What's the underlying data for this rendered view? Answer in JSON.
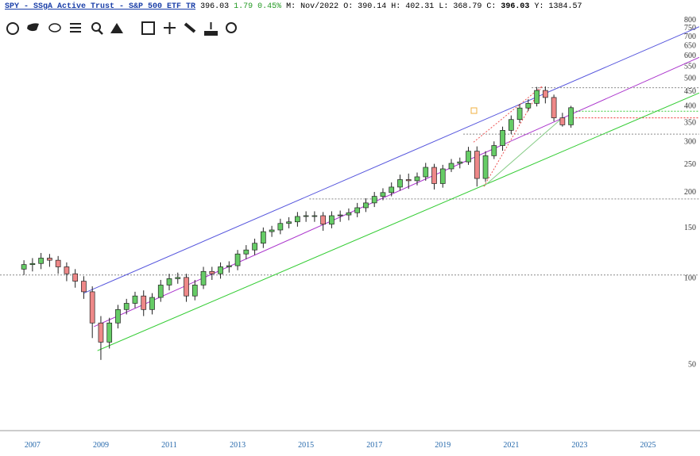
{
  "header": {
    "title": "SPY - SSgA Active Trust - S&P 500 ETF TR",
    "last": 396.03,
    "change": 1.79,
    "change_pct": "0.45%",
    "period": "M: Nov/2022",
    "fields": [
      {
        "label": "O:",
        "value": 390.14
      },
      {
        "label": "H:",
        "value": 402.31
      },
      {
        "label": "L:",
        "value": 368.79
      },
      {
        "label": "C:",
        "value": 396.03
      },
      {
        "label": "Y:",
        "value": 1384.57
      }
    ]
  },
  "chart_data": {
    "type": "candlestick",
    "log_scale": true,
    "up_color": "#66cc66",
    "down_color": "#ee8888",
    "x": [
      2006.75,
      2007,
      2007.25,
      2007.5,
      2007.75,
      2008,
      2008.25,
      2008.5,
      2008.75,
      2009,
      2009.25,
      2009.5,
      2009.75,
      2010,
      2010.25,
      2010.5,
      2010.75,
      2011,
      2011.25,
      2011.5,
      2011.75,
      2012,
      2012.25,
      2012.5,
      2012.75,
      2013,
      2013.25,
      2013.5,
      2013.75,
      2014,
      2014.25,
      2014.5,
      2014.75,
      2015,
      2015.25,
      2015.5,
      2015.75,
      2016,
      2016.25,
      2016.5,
      2016.75,
      2017,
      2017.25,
      2017.5,
      2017.75,
      2018,
      2018.25,
      2018.5,
      2018.75,
      2019,
      2019.25,
      2019.5,
      2019.75,
      2020,
      2020.25,
      2020.5,
      2020.75,
      2021,
      2021.25,
      2021.5,
      2021.75,
      2022,
      2022.25,
      2022.5,
      2022.75
    ],
    "open": [
      108,
      112,
      113,
      118,
      116,
      110,
      104,
      98,
      90,
      70,
      60,
      70,
      78,
      82,
      87,
      78,
      86,
      95,
      100,
      101,
      87,
      95,
      106,
      104,
      110,
      111,
      122,
      126,
      133,
      146,
      148,
      156,
      158,
      165,
      166,
      166,
      155,
      166,
      167,
      170,
      177,
      184,
      194,
      200,
      209,
      222,
      220,
      227,
      245,
      215,
      242,
      253,
      256,
      279,
      224,
      269,
      292,
      330,
      360,
      395,
      410,
      455,
      430,
      365,
      345
    ],
    "high": [
      116,
      118,
      123,
      122,
      120,
      114,
      108,
      102,
      94,
      74,
      73,
      81,
      85,
      90,
      91,
      89,
      99,
      104,
      105,
      104,
      99,
      110,
      110,
      114,
      115,
      126,
      131,
      138,
      151,
      153,
      162,
      164,
      171,
      172,
      172,
      171,
      172,
      173,
      176,
      184,
      191,
      201,
      207,
      217,
      231,
      233,
      235,
      254,
      252,
      250,
      262,
      265,
      289,
      290,
      279,
      302,
      340,
      372,
      408,
      424,
      468,
      470,
      440,
      380,
      402
    ],
    "low": [
      103,
      106,
      108,
      110,
      104,
      98,
      93,
      85,
      62,
      52,
      57,
      67,
      75,
      79,
      74,
      75,
      83,
      91,
      96,
      83,
      84,
      92,
      99,
      100,
      105,
      107,
      117,
      121,
      128,
      140,
      143,
      150,
      152,
      158,
      158,
      147,
      150,
      158,
      160,
      164,
      171,
      178,
      188,
      194,
      203,
      206,
      212,
      220,
      205,
      208,
      236,
      243,
      250,
      210,
      218,
      262,
      280,
      320,
      350,
      385,
      400,
      410,
      355,
      340,
      337
    ],
    "close": [
      112,
      113,
      118,
      116,
      110,
      104,
      98,
      90,
      70,
      60,
      70,
      78,
      82,
      87,
      78,
      86,
      95,
      100,
      101,
      87,
      95,
      106,
      104,
      110,
      111,
      122,
      126,
      133,
      146,
      148,
      156,
      158,
      165,
      166,
      166,
      155,
      166,
      167,
      170,
      177,
      184,
      194,
      200,
      209,
      222,
      220,
      227,
      245,
      215,
      242,
      253,
      256,
      279,
      224,
      269,
      292,
      330,
      360,
      395,
      410,
      455,
      430,
      365,
      345,
      396
    ],
    "xlim": [
      2006.05,
      2026.5
    ],
    "xticks": [
      2007,
      2009,
      2011,
      2013,
      2015,
      2017,
      2019,
      2021,
      2023,
      2025
    ],
    "ylim": [
      30,
      840
    ],
    "yticks": [
      50,
      100,
      150,
      200,
      250,
      300,
      350,
      400,
      450,
      500,
      550,
      600,
      650,
      700,
      750,
      800
    ],
    "trendlines": [
      {
        "color": "#5555dd",
        "x": [
          2008.5,
          2026.5
        ],
        "y": [
          89,
          760
        ]
      },
      {
        "color": "#aa33cc",
        "x": [
          2008.8,
          2026.5
        ],
        "y": [
          68,
          594
        ]
      },
      {
        "color": "#33cc33",
        "x": [
          2008.9,
          2026.5
        ],
        "y": [
          56,
          446
        ]
      },
      {
        "color": "#88cc88",
        "x": [
          2020.2,
          2022.5
        ],
        "y": [
          210,
          365
        ]
      },
      {
        "color": "#ee5555",
        "dash": true,
        "x": [
          2020.2,
          2021.9
        ],
        "y": [
          210,
          470
        ]
      },
      {
        "color": "#ee5555",
        "dash": true,
        "x": [
          2019.9,
          2021.9
        ],
        "y": [
          300,
          470
        ]
      }
    ],
    "hlines": [
      {
        "value": 465,
        "from": 2021.6,
        "color": "#888888"
      },
      {
        "value": 385,
        "from": 2022.7,
        "color": "#33cc33"
      },
      {
        "value": 365,
        "from": 2022.7,
        "color": "#ee3333"
      },
      {
        "value": 320,
        "from": 2019.6,
        "color": "#888888"
      },
      {
        "value": 190,
        "from": 2015.1,
        "color": "#888888"
      },
      {
        "value": 103,
        "from": 2006.05,
        "color": "#888888"
      }
    ]
  }
}
